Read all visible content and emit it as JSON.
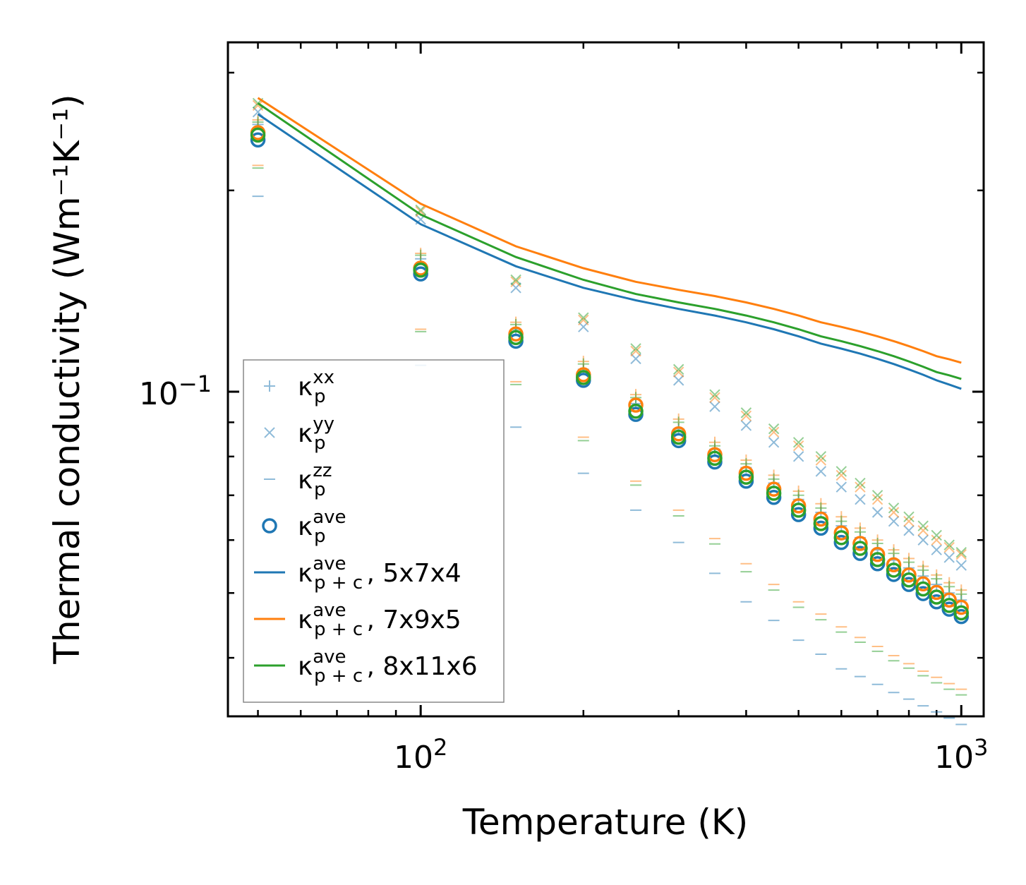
{
  "chart_data": {
    "type": "scatter",
    "title": "",
    "xlabel": "Temperature (K)",
    "ylabel": "Thermal conductivity (Wm⁻¹K⁻¹)",
    "xscale": "log",
    "yscale": "log",
    "xlim": [
      44,
      1100
    ],
    "ylim": [
      0.0327,
      0.333
    ],
    "x_ticks": [
      {
        "value": 100,
        "base": "10",
        "exp": "2"
      },
      {
        "value": 1000,
        "base": "10",
        "exp": "3"
      }
    ],
    "y_ticks": [
      {
        "value": 0.1,
        "base": "10",
        "exp": "−1"
      }
    ],
    "x": [
      50,
      100,
      150,
      200,
      250,
      300,
      350,
      400,
      450,
      500,
      550,
      600,
      650,
      700,
      750,
      800,
      850,
      900,
      950,
      1000
    ],
    "legend_position": "lower-left",
    "colors": {
      "c1": "#1f77b4",
      "c2": "#ff7f0e",
      "c3": "#2ca02c"
    },
    "series": [
      {
        "name": "kxx_5x7x4",
        "marker": "plus",
        "color": "#1f77b4",
        "values": [
          0.251,
          0.158,
          0.124,
          0.108,
          0.096,
          0.088,
          0.082,
          0.077,
          0.073,
          0.069,
          0.066,
          0.063,
          0.0605,
          0.058,
          0.056,
          0.0545,
          0.053,
          0.0515,
          0.05,
          0.0488
        ]
      },
      {
        "name": "kxx_7x9x5",
        "marker": "plus",
        "color": "#ff7f0e",
        "values": [
          0.255,
          0.161,
          0.127,
          0.111,
          0.099,
          0.091,
          0.084,
          0.079,
          0.075,
          0.071,
          0.068,
          0.065,
          0.0625,
          0.06,
          0.058,
          0.0563,
          0.0548,
          0.0532,
          0.0518,
          0.0505
        ]
      },
      {
        "name": "kxx_8x11x6",
        "marker": "plus",
        "color": "#2ca02c",
        "values": [
          0.253,
          0.16,
          0.126,
          0.11,
          0.098,
          0.09,
          0.083,
          0.078,
          0.074,
          0.07,
          0.067,
          0.064,
          0.0617,
          0.0593,
          0.0573,
          0.0556,
          0.0541,
          0.0525,
          0.0511,
          0.0498
        ]
      },
      {
        "name": "kyy_5x7x4",
        "marker": "x",
        "color": "#1f77b4",
        "values": [
          0.262,
          0.181,
          0.143,
          0.125,
          0.112,
          0.104,
          0.095,
          0.089,
          0.084,
          0.08,
          0.076,
          0.072,
          0.069,
          0.066,
          0.064,
          0.062,
          0.06,
          0.058,
          0.0565,
          0.055
        ]
      },
      {
        "name": "kyy_7x9x5",
        "marker": "x",
        "color": "#ff7f0e",
        "values": [
          0.268,
          0.186,
          0.146,
          0.128,
          0.115,
          0.107,
          0.098,
          0.092,
          0.087,
          0.083,
          0.079,
          0.075,
          0.072,
          0.069,
          0.066,
          0.064,
          0.062,
          0.06,
          0.0585,
          0.0571
        ]
      },
      {
        "name": "kyy_8x11x6",
        "marker": "x",
        "color": "#2ca02c",
        "values": [
          0.27,
          0.187,
          0.147,
          0.129,
          0.116,
          0.108,
          0.099,
          0.093,
          0.088,
          0.084,
          0.08,
          0.076,
          0.073,
          0.07,
          0.067,
          0.065,
          0.063,
          0.061,
          0.059,
          0.0575
        ]
      },
      {
        "name": "kzz_5x7x4",
        "marker": "dash",
        "color": "#1f77b4",
        "values": [
          0.196,
          0.1095,
          0.0885,
          0.0755,
          0.0665,
          0.0595,
          0.0535,
          0.0485,
          0.0455,
          0.0425,
          0.0405,
          0.0385,
          0.0375,
          0.0365,
          0.0355,
          0.0347,
          0.0339,
          0.0332,
          0.0325,
          0.0318
        ]
      },
      {
        "name": "kzz_7x9x5",
        "marker": "dash",
        "color": "#ff7f0e",
        "values": [
          0.218,
          0.124,
          0.1035,
          0.0855,
          0.0735,
          0.0665,
          0.0603,
          0.0553,
          0.0515,
          0.0485,
          0.0465,
          0.0445,
          0.0429,
          0.0416,
          0.0403,
          0.0392,
          0.0382,
          0.0374,
          0.0366,
          0.0359
        ]
      },
      {
        "name": "kzz_8x11x6",
        "marker": "dash",
        "color": "#2ca02c",
        "values": [
          0.216,
          0.123,
          0.1025,
          0.0845,
          0.0725,
          0.0652,
          0.0592,
          0.0538,
          0.0505,
          0.0476,
          0.0456,
          0.0437,
          0.0422,
          0.0409,
          0.0396,
          0.0386,
          0.0376,
          0.0367,
          0.0359,
          0.0352
        ]
      },
      {
        "name": "kave_5x7x4",
        "marker": "circle",
        "color": "#1f77b4",
        "values": [
          0.238,
          0.15,
          0.119,
          0.104,
          0.0925,
          0.0845,
          0.0785,
          0.0735,
          0.0695,
          0.0655,
          0.0625,
          0.0595,
          0.0573,
          0.0553,
          0.0533,
          0.0515,
          0.0499,
          0.0485,
          0.0473,
          0.0461
        ]
      },
      {
        "name": "kave_7x9x5",
        "marker": "circle",
        "color": "#ff7f0e",
        "values": [
          0.244,
          0.153,
          0.122,
          0.106,
          0.0955,
          0.0865,
          0.0805,
          0.0755,
          0.0715,
          0.0675,
          0.0645,
          0.0615,
          0.0593,
          0.0571,
          0.0551,
          0.0532,
          0.0516,
          0.0501,
          0.0488,
          0.0476
        ]
      },
      {
        "name": "kave_8x11x6",
        "marker": "circle",
        "color": "#2ca02c",
        "values": [
          0.242,
          0.152,
          0.1205,
          0.105,
          0.0935,
          0.0855,
          0.0795,
          0.0745,
          0.0705,
          0.0665,
          0.0635,
          0.0605,
          0.0583,
          0.0561,
          0.0541,
          0.0523,
          0.0507,
          0.0493,
          0.0479,
          0.0467
        ]
      },
      {
        "name": "kpc_5x7x4",
        "marker": "line",
        "color": "#1f77b4",
        "values": [
          0.26,
          0.178,
          0.154,
          0.143,
          0.137,
          0.133,
          0.13,
          0.127,
          0.124,
          0.121,
          0.118,
          0.116,
          0.114,
          0.112,
          0.11,
          0.108,
          0.106,
          0.104,
          0.1025,
          0.101
        ]
      },
      {
        "name": "kpc_7x9x5",
        "marker": "line",
        "color": "#ff7f0e",
        "values": [
          0.275,
          0.191,
          0.165,
          0.153,
          0.146,
          0.142,
          0.139,
          0.136,
          0.133,
          0.13,
          0.127,
          0.125,
          0.123,
          0.121,
          0.119,
          0.117,
          0.115,
          0.113,
          0.1118,
          0.1105
        ]
      },
      {
        "name": "kpc_8x11x6",
        "marker": "line",
        "color": "#2ca02c",
        "values": [
          0.27,
          0.184,
          0.159,
          0.147,
          0.14,
          0.136,
          0.133,
          0.13,
          0.127,
          0.124,
          0.121,
          0.119,
          0.117,
          0.115,
          0.113,
          0.111,
          0.109,
          0.107,
          0.1058,
          0.1045
        ]
      }
    ],
    "legend": [
      {
        "symbol": "κ",
        "sub": "p",
        "sup": "xx",
        "suffix": "",
        "marker": "plus",
        "color": "#1f77b4"
      },
      {
        "symbol": "κ",
        "sub": "p",
        "sup": "yy",
        "suffix": "",
        "marker": "x",
        "color": "#1f77b4"
      },
      {
        "symbol": "κ",
        "sub": "p",
        "sup": "zz",
        "suffix": "",
        "marker": "dash",
        "color": "#1f77b4"
      },
      {
        "symbol": "κ",
        "sub": "p",
        "sup": "ave",
        "suffix": "",
        "marker": "circle",
        "color": "#1f77b4"
      },
      {
        "symbol": "κ",
        "sub": "p + c",
        "sup": "ave",
        "suffix": ", 5x7x4",
        "marker": "line",
        "color": "#1f77b4"
      },
      {
        "symbol": "κ",
        "sub": "p + c",
        "sup": "ave",
        "suffix": ", 7x9x5",
        "marker": "line",
        "color": "#ff7f0e"
      },
      {
        "symbol": "κ",
        "sub": "p + c",
        "sup": "ave",
        "suffix": ", 8x11x6",
        "marker": "line",
        "color": "#2ca02c"
      }
    ]
  }
}
